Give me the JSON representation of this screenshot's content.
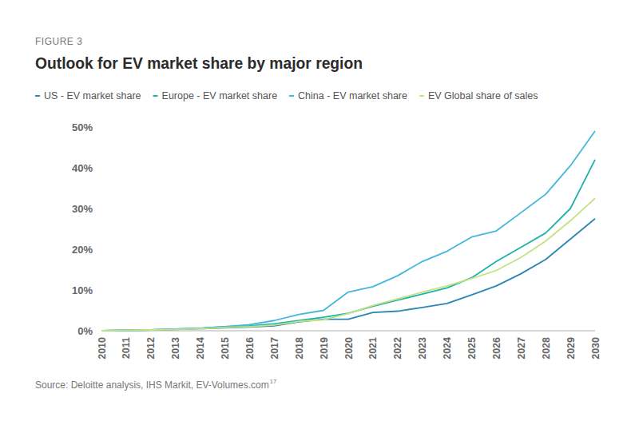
{
  "chart_data": {
    "type": "line",
    "figure_label": "FIGURE 3",
    "title": "Outlook for EV market share by major region",
    "source": "Source: Deloitte analysis, IHS Markit, EV-Volumes.com",
    "source_footnote": "17",
    "categories": [
      "2010",
      "2011",
      "2012",
      "2013",
      "2014",
      "2015",
      "2016",
      "2017",
      "2018",
      "2019",
      "2020",
      "2021",
      "2022",
      "2023",
      "2024",
      "2025",
      "2026",
      "2027",
      "2028",
      "2029",
      "2030"
    ],
    "series": [
      {
        "name": "US - EV market share",
        "color": "#2a86b3",
        "values": [
          0,
          0.1,
          0.2,
          0.3,
          0.5,
          0.7,
          0.9,
          1.2,
          2.2,
          2.8,
          2.8,
          4.5,
          4.8,
          5.7,
          6.7,
          8.8,
          11,
          14,
          17.5,
          22.5,
          27.5
        ]
      },
      {
        "name": "Europe - EV market share",
        "color": "#1db3aa",
        "values": [
          0,
          0.1,
          0.2,
          0.4,
          0.6,
          1.0,
          1.2,
          1.7,
          2.5,
          3.3,
          4.3,
          6,
          7.5,
          9,
          10.5,
          13,
          17,
          20.5,
          24,
          30,
          42
        ]
      },
      {
        "name": "China - EV market share",
        "color": "#45b6dc",
        "values": [
          0,
          0.1,
          0.2,
          0.4,
          0.6,
          1.0,
          1.5,
          2.5,
          4,
          5,
          9.5,
          10.8,
          13.5,
          17,
          19.5,
          23,
          24.5,
          29,
          33.5,
          40.5,
          49
        ]
      },
      {
        "name": "EV Global share of sales",
        "color": "#c4e283",
        "values": [
          0,
          0.1,
          0.2,
          0.3,
          0.5,
          0.8,
          1.0,
          1.4,
          2.3,
          2.7,
          4.2,
          6.2,
          7.8,
          9.5,
          11,
          12.8,
          14.8,
          18,
          22,
          27,
          32.5
        ]
      }
    ],
    "ylim": [
      0,
      50
    ],
    "yticks": [
      {
        "value": 0,
        "label": "0%"
      },
      {
        "value": 10,
        "label": "10%"
      },
      {
        "value": 20,
        "label": "20%"
      },
      {
        "value": 30,
        "label": "30%"
      },
      {
        "value": 40,
        "label": "40%"
      },
      {
        "value": 50,
        "label": "50%"
      }
    ],
    "grid": false,
    "legend": "top"
  }
}
